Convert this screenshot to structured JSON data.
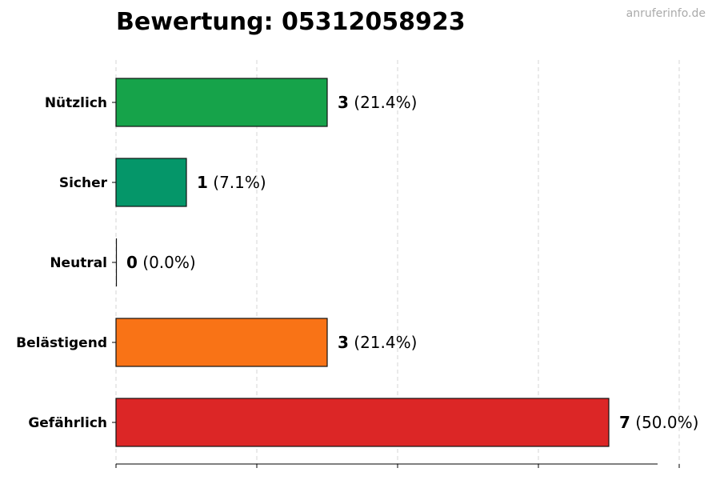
{
  "header": {
    "title": "Bewertung: 05312058923",
    "watermark": "anruferinfo.de"
  },
  "chart_data": {
    "type": "bar",
    "orientation": "horizontal",
    "title": "Bewertung: 05312058923",
    "xlabel": "",
    "ylabel": "",
    "xlim": [
      0,
      8.8
    ],
    "grid": "vertical dashed",
    "categories": [
      "Nützlich",
      "Sicher",
      "Neutral",
      "Belästigend",
      "Gefährlich"
    ],
    "values": [
      3,
      1,
      0,
      3,
      7
    ],
    "percent_labels": [
      "(21.4%)",
      "(7.1%)",
      "(0.0%)",
      "(21.4%)",
      "(50.0%)"
    ],
    "count_labels": [
      "3",
      "1",
      "0",
      "3",
      "7"
    ],
    "colors": [
      "#16a34a",
      "#059669",
      "#9ca3af",
      "#f97316",
      "#dc2626"
    ]
  }
}
